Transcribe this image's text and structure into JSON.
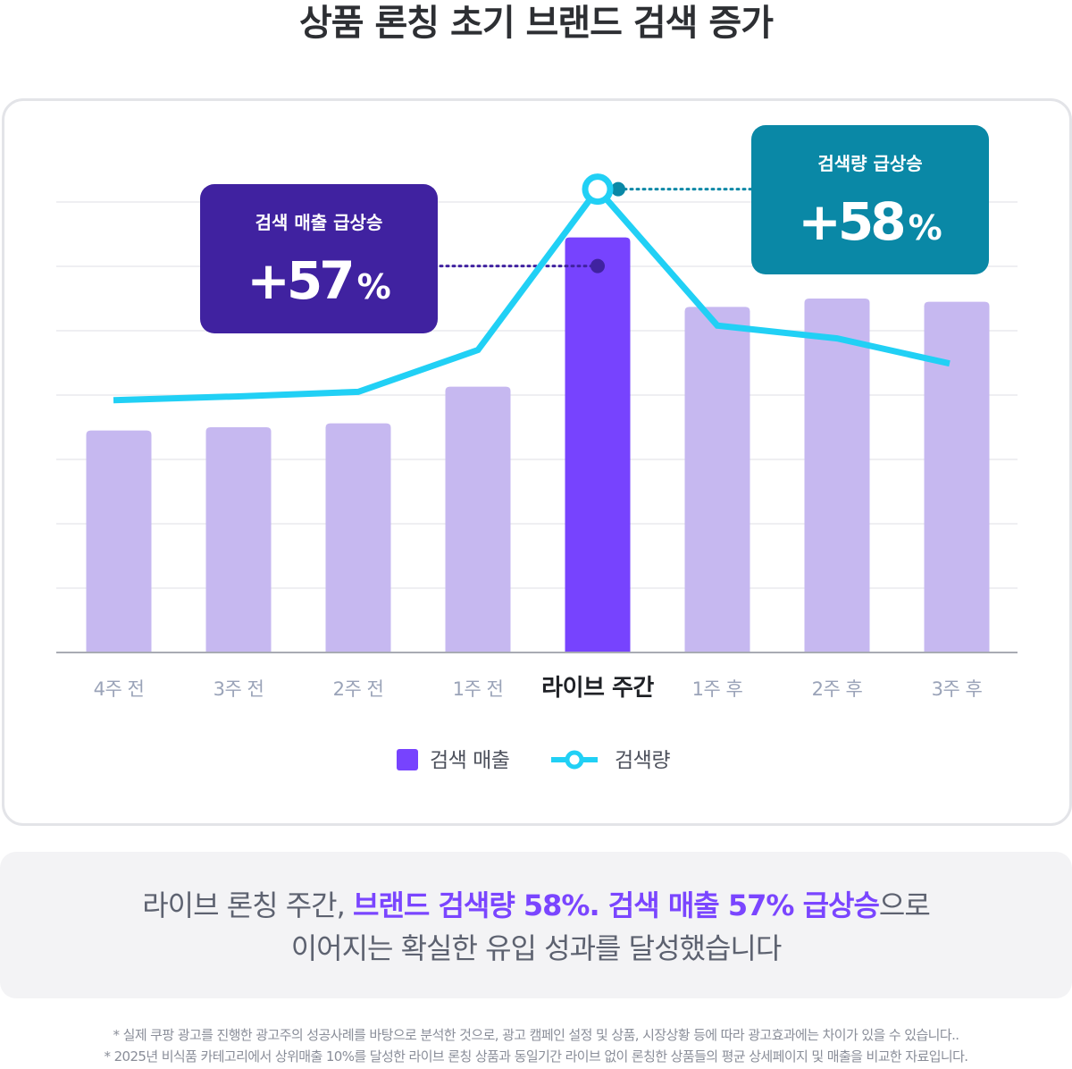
{
  "title": "상품 론칭 초기 브랜드 검색 증가",
  "chart_data": {
    "type": "bar",
    "categories": [
      "4주 전",
      "3주 전",
      "2주 전",
      "1주 전",
      "라이브 주간",
      "1주 후",
      "2주 후",
      "3주 후"
    ],
    "highlight_category": "라이브 주간",
    "series": [
      {
        "name": "검색 매출",
        "type": "bar",
        "values": [
          34.5,
          35,
          35.6,
          41.3,
          64.5,
          53.7,
          55,
          54.5
        ]
      },
      {
        "name": "검색량",
        "type": "line",
        "values": [
          39.2,
          39.8,
          40.5,
          47,
          72,
          50.8,
          48.8,
          44.9
        ]
      }
    ],
    "ylim": [
      0,
      80
    ],
    "grid": true,
    "legend_position": "bottom",
    "colors": {
      "bar": "#c6b8f0",
      "bar_highlight": "#7743fe",
      "line": "#21d0f5",
      "callout_sales": "#4022a0",
      "callout_search": "#0a88a6"
    },
    "annotations": [
      {
        "target": "검색 매출",
        "label": "검색 매출 급상승",
        "value": "+57",
        "unit": "%"
      },
      {
        "target": "검색량",
        "label": "검색량 급상승",
        "value": "+58",
        "unit": "%"
      }
    ]
  },
  "summary": {
    "line1_plain": "라이브 론칭 주간, ",
    "line1_highlight": "브랜드 검색량 58%. 검색 매출 57% 급상승",
    "line1_tail": "으로",
    "line2": "이어지는 확실한 유입 성과를 달성했습니다"
  },
  "footnotes": [
    "* 실제 쿠팡 광고를 진행한 광고주의 성공사례를 바탕으로 분석한 것으로, 광고 캠페인 설정 및 상품, 시장상황 등에 따라 광고효과에는 차이가 있을 수 있습니다..",
    "* 2025년 비식품 카테고리에서 상위매출 10%를 달성한 라이브 론칭 상품과 동일기간 라이브 없이 론칭한 상품들의 평균 상세페이지 및 매출을 비교한 자료입니다."
  ]
}
